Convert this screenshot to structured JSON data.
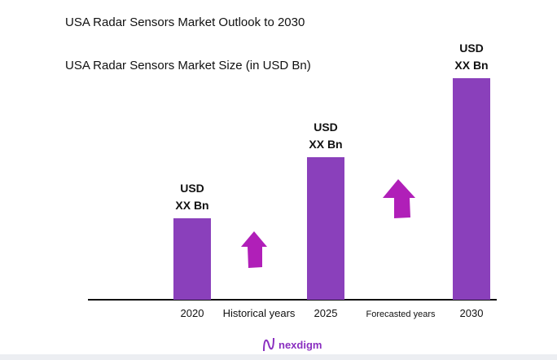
{
  "title": "USA Radar Sensors Market Outlook to 2030",
  "chart_data": {
    "type": "bar",
    "title": "USA Radar Sensors Market Size (in USD Bn)",
    "categories": [
      "2020",
      "2025",
      "2030"
    ],
    "values": [
      1.0,
      1.75,
      2.72
    ],
    "data_labels": [
      [
        "USD",
        "XX Bn"
      ],
      [
        "USD",
        "XX Bn"
      ],
      [
        "USD",
        "XX Bn"
      ]
    ],
    "period_labels": [
      "Historical years",
      "Forecasted years"
    ],
    "ylim": [
      0,
      2.9
    ],
    "xlabel": "",
    "ylabel": "",
    "colors": {
      "bar": "#8a40bb",
      "arrow": "#b01fb8"
    }
  },
  "brand": "nexdigm"
}
